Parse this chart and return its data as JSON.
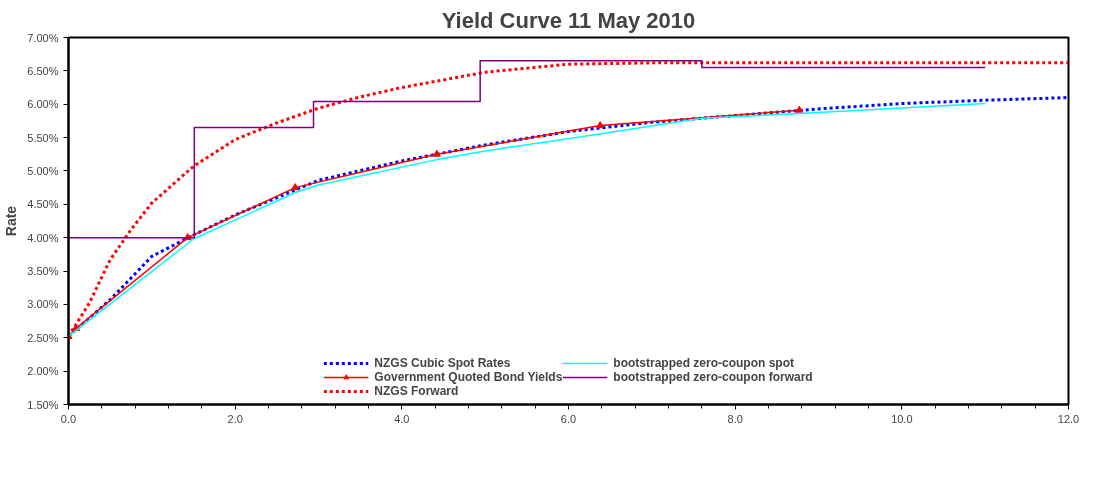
{
  "chart_data": {
    "type": "line",
    "title": "Yield Curve 11 May 2010",
    "ylabel": "Rate",
    "xlim": [
      0,
      12
    ],
    "ylim": [
      1.5,
      7.0
    ],
    "xticks": [
      {
        "value": 0,
        "label": "0.0"
      },
      {
        "value": 2,
        "label": "2.0"
      },
      {
        "value": 4,
        "label": "4.0"
      },
      {
        "value": 6,
        "label": "6.0"
      },
      {
        "value": 8,
        "label": "8.0"
      },
      {
        "value": 10,
        "label": "10.0"
      },
      {
        "value": 12,
        "label": "12.0"
      }
    ],
    "yticks": [
      {
        "value": 1.5,
        "label": "1.50%"
      },
      {
        "value": 2.0,
        "label": "2.00%"
      },
      {
        "value": 2.5,
        "label": "2.50%"
      },
      {
        "value": 3.0,
        "label": "3.00%"
      },
      {
        "value": 3.5,
        "label": "3.50%"
      },
      {
        "value": 4.0,
        "label": "4.00%"
      },
      {
        "value": 4.5,
        "label": "4.50%"
      },
      {
        "value": 5.0,
        "label": "5.00%"
      },
      {
        "value": 5.5,
        "label": "5.50%"
      },
      {
        "value": 6.0,
        "label": "6.00%"
      },
      {
        "value": 6.5,
        "label": "6.50%"
      },
      {
        "value": 7.0,
        "label": "7.00%"
      }
    ],
    "grid": false,
    "legend": "bottom",
    "series": [
      {
        "name": "NZGS Cubic Spot Rates",
        "color": "#0000ff",
        "line_style": "dashed",
        "marker": "none",
        "x": [
          0,
          0.5,
          1.0,
          1.5,
          2.0,
          3.0,
          4.0,
          5.0,
          6.0,
          7.0,
          8.0,
          9.0,
          10.0,
          11.0,
          12.0
        ],
        "values": [
          2.52,
          3.07,
          3.72,
          4.04,
          4.34,
          4.86,
          5.15,
          5.39,
          5.59,
          5.73,
          5.83,
          5.93,
          6.01,
          6.06,
          6.1
        ]
      },
      {
        "name": "Government Quoted Bond Yields",
        "color": "#ff0000",
        "line_style": "solid",
        "marker": "triangle",
        "x": [
          0,
          0.09,
          1.43,
          2.72,
          4.42,
          6.38,
          8.77
        ],
        "values": [
          2.52,
          2.64,
          4.0,
          4.75,
          5.25,
          5.68,
          5.91
        ]
      },
      {
        "name": "NZGS Forward",
        "color": "#ff0000",
        "line_style": "dashed",
        "marker": "none",
        "x": [
          0,
          0.25,
          0.5,
          0.75,
          1.0,
          1.5,
          2.0,
          2.5,
          3.0,
          3.5,
          4.0,
          5.0,
          6.0,
          7.0,
          8.0,
          9.0,
          10.0,
          11.0,
          12.0
        ],
        "values": [
          2.52,
          3.02,
          3.67,
          4.12,
          4.52,
          5.07,
          5.47,
          5.72,
          5.94,
          6.11,
          6.25,
          6.48,
          6.6,
          6.62,
          6.62,
          6.62,
          6.62,
          6.62,
          6.62
        ]
      },
      {
        "name": "bootstrapped zero-coupon spot",
        "color": "#00ffff",
        "line_style": "solid",
        "marker": "none",
        "x": [
          0,
          1.5,
          2.73,
          3.0,
          4.42,
          5.0,
          6.1,
          7.6,
          8.77,
          11.0
        ],
        "values": [
          2.52,
          3.98,
          4.68,
          4.79,
          5.17,
          5.3,
          5.5,
          5.79,
          5.86,
          6.01
        ]
      },
      {
        "name": "bootstrapped zero-coupon forward",
        "type": "step",
        "color": "#800080",
        "line_style": "solid",
        "marker": "none",
        "x": [
          0,
          1.51,
          2.94,
          4.94,
          7.6,
          11.0
        ],
        "values": [
          4.0,
          5.65,
          6.04,
          6.65,
          6.55,
          6.55
        ]
      }
    ]
  }
}
